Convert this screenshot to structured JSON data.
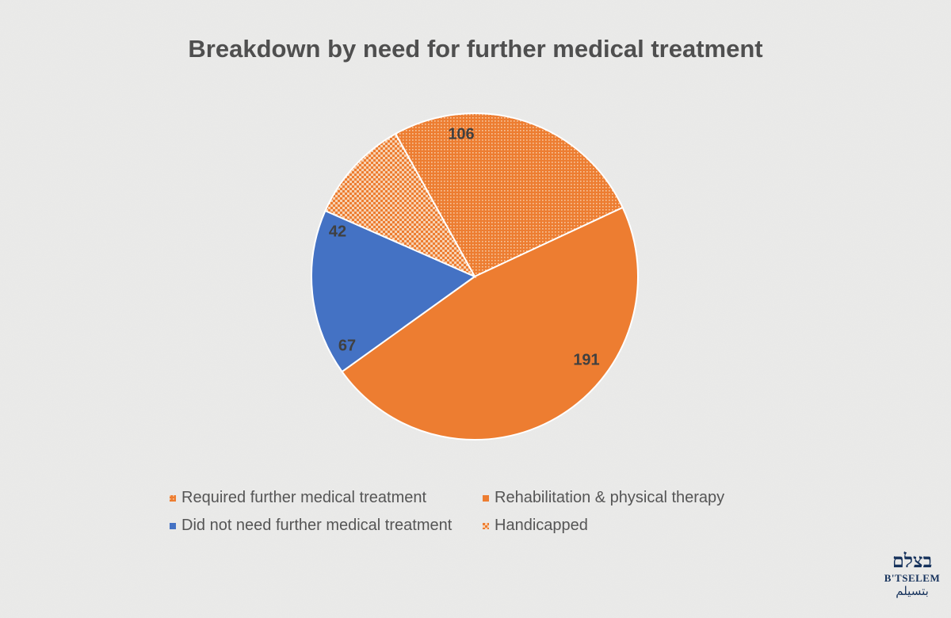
{
  "chart_data": {
    "type": "pie",
    "title": "Breakdown by need for further medical treatment",
    "slices": [
      {
        "name": "Required further medical treatment",
        "value": 106,
        "color": "#ed7d31",
        "pattern": "small-dots"
      },
      {
        "name": "Rehabilitation & physical therapy",
        "value": 191,
        "color": "#ed7d31",
        "pattern": "solid"
      },
      {
        "name": "Did not need further medical treatment",
        "value": 67,
        "color": "#4472c4",
        "pattern": "solid"
      },
      {
        "name": "Handicapped",
        "value": 42,
        "color": "#ed7d31",
        "pattern": "checker"
      }
    ],
    "data_labels": true,
    "legend_position": "bottom"
  },
  "logo": {
    "hebrew": "בצלם",
    "latin": "B'TSELEM",
    "arabic": "بتسيلم"
  }
}
